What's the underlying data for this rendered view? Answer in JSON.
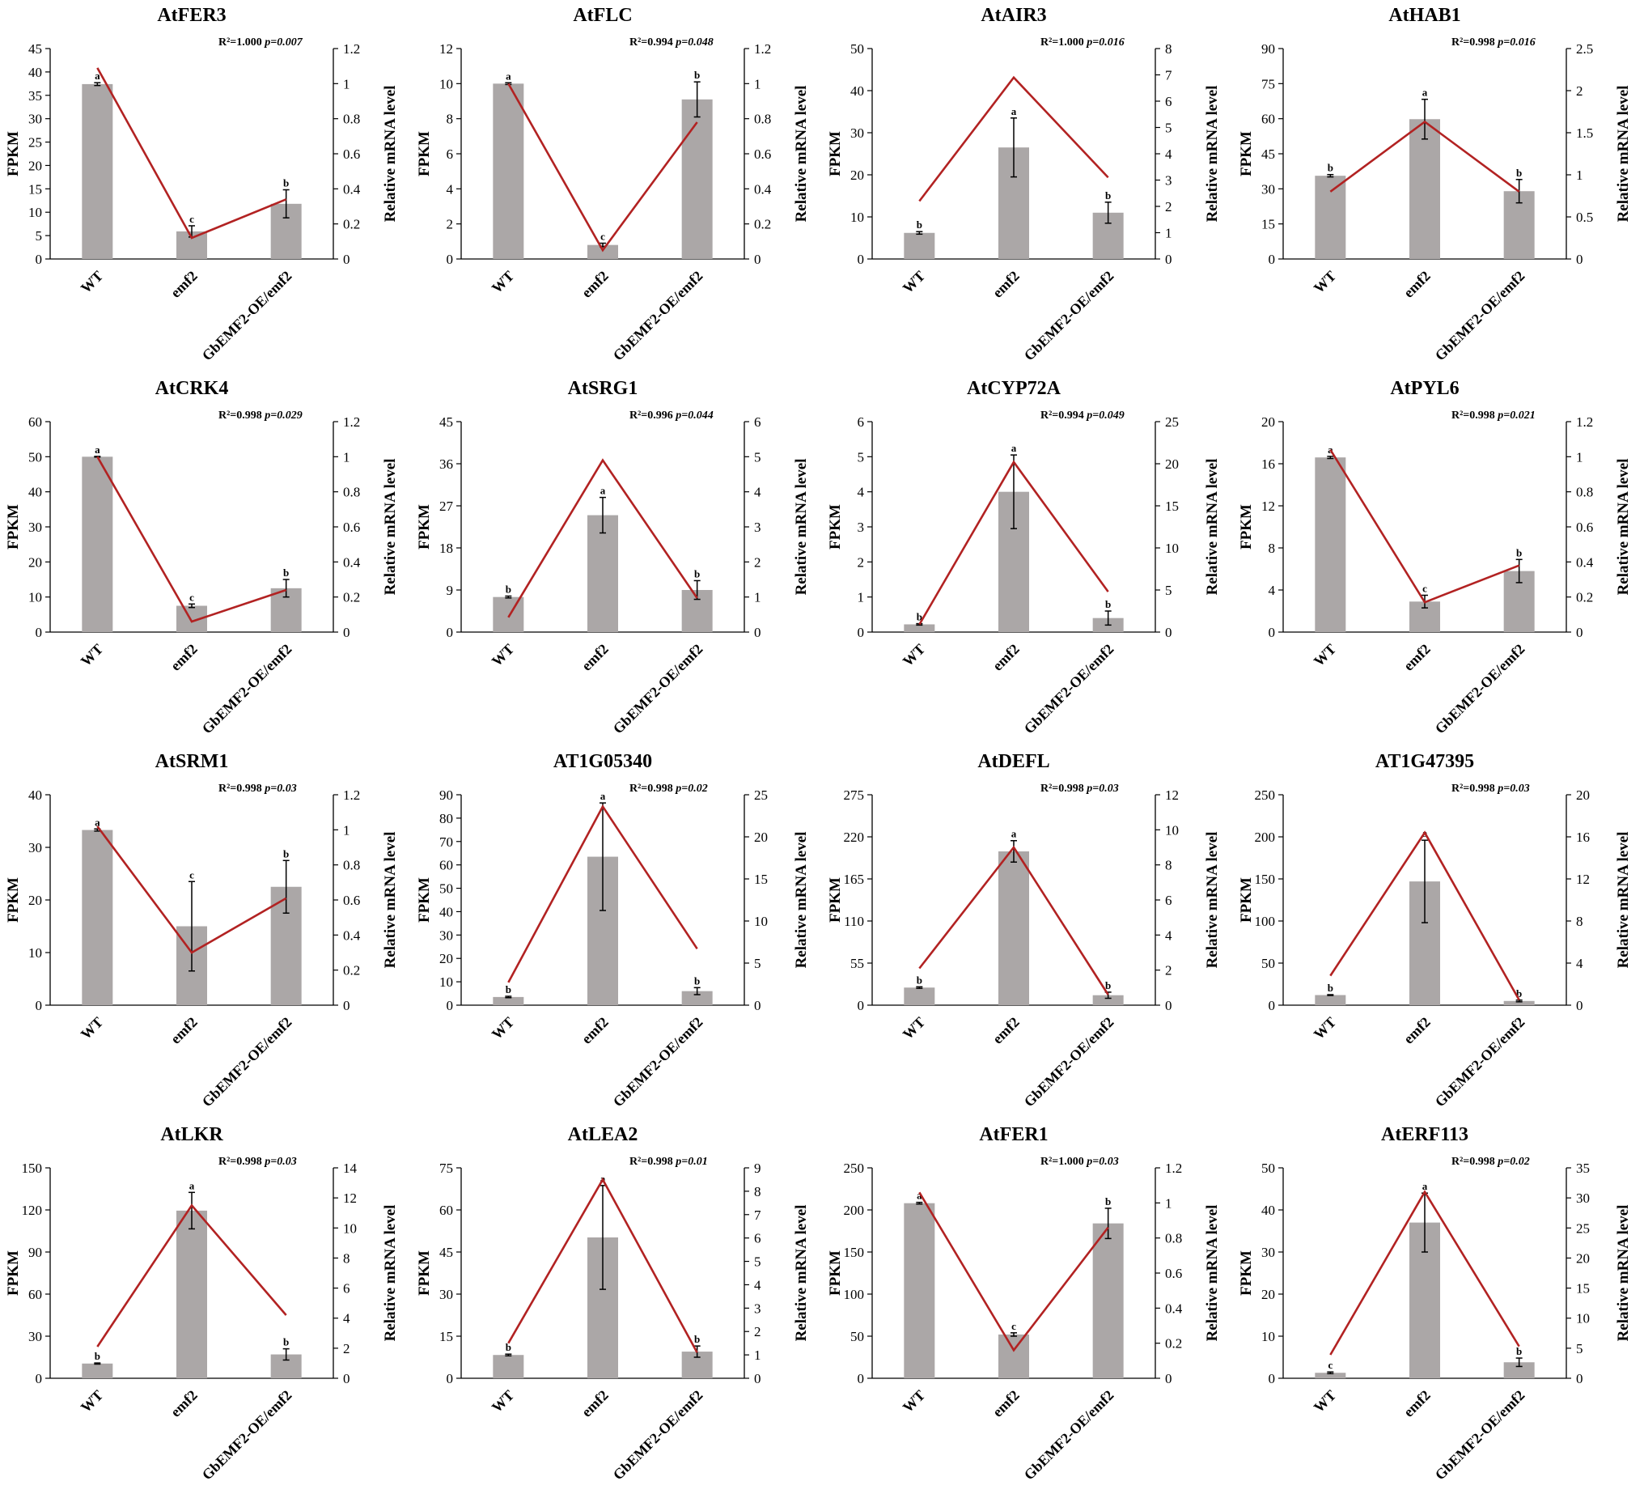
{
  "chart_data": [
    {
      "type": "bar+line",
      "title": "AtFER3",
      "categories": [
        "WT",
        "emf2",
        "GbEMF2-OE/emf2"
      ],
      "ylabel": "FPKM",
      "y2label": "Relative mRNA level",
      "ylim": [
        0,
        45
      ],
      "yticks": [
        0,
        5,
        10,
        15,
        20,
        25,
        30,
        35,
        40,
        45
      ],
      "y2lim": [
        0,
        1.2
      ],
      "y2ticks": [
        "0",
        "0.2",
        "0.4",
        "0.6",
        "0.8",
        "1",
        "1.2"
      ],
      "bars": [
        37.4,
        5.9,
        11.8
      ],
      "errors": [
        0.3,
        1.2,
        3.0
      ],
      "letters": [
        "a",
        "c",
        "b"
      ],
      "line": [
        1.09,
        0.12,
        0.34
      ],
      "stat_r2": "R²=1.000",
      "stat_p": "p=0.007"
    },
    {
      "type": "bar+line",
      "title": "AtFLC",
      "categories": [
        "WT",
        "emf2",
        "GbEMF2-OE/emf2"
      ],
      "ylabel": "FPKM",
      "y2label": "Relative mRNA level",
      "ylim": [
        0,
        12
      ],
      "yticks": [
        0,
        2,
        4,
        6,
        8,
        10,
        12
      ],
      "y2lim": [
        0,
        1.2
      ],
      "y2ticks": [
        "0",
        "0.2",
        "0.4",
        "0.6",
        "0.8",
        "1",
        "1.2"
      ],
      "bars": [
        10.0,
        0.8,
        9.1
      ],
      "errors": [
        0.05,
        0.1,
        1.0
      ],
      "letters": [
        "a",
        "c",
        "b"
      ],
      "line": [
        1.0,
        0.05,
        0.78
      ],
      "stat_r2": "R²=0.994",
      "stat_p": "p=0.048"
    },
    {
      "type": "bar+line",
      "title": "AtAIR3",
      "categories": [
        "WT",
        "emf2",
        "GbEMF2-OE/emf2"
      ],
      "ylabel": "FPKM",
      "y2label": "Relative mRNA level",
      "ylim": [
        0,
        50
      ],
      "yticks": [
        0,
        10,
        20,
        30,
        40,
        50
      ],
      "y2lim": [
        0,
        8
      ],
      "y2ticks": [
        "0",
        "1",
        "2",
        "3",
        "4",
        "5",
        "6",
        "7",
        "8"
      ],
      "bars": [
        6.2,
        26.5,
        11.0
      ],
      "errors": [
        0.3,
        7.0,
        2.5
      ],
      "letters": [
        "b",
        "a",
        "b"
      ],
      "line": [
        2.2,
        6.9,
        3.1
      ],
      "stat_r2": "R²=1.000",
      "stat_p": "p=0.016"
    },
    {
      "type": "bar+line",
      "title": "AtHAB1",
      "categories": [
        "WT",
        "emf2",
        "GbEMF2-OE/emf2"
      ],
      "ylabel": "FPKM",
      "y2label": "Relative mRNA level",
      "ylim": [
        0,
        90
      ],
      "yticks": [
        0,
        15,
        30,
        45,
        60,
        75,
        90
      ],
      "y2lim": [
        0,
        2.5
      ],
      "y2ticks": [
        "0",
        "0.5",
        "1",
        "1.5",
        "2",
        "2.5"
      ],
      "bars": [
        35.6,
        59.8,
        29.0
      ],
      "errors": [
        0.5,
        8.5,
        5.0
      ],
      "letters": [
        "b",
        "a",
        "b"
      ],
      "line": [
        0.8,
        1.63,
        0.8
      ],
      "stat_r2": "R²=0.998",
      "stat_p": "p=0.016"
    },
    {
      "type": "bar+line",
      "title": "AtCRK4",
      "categories": [
        "WT",
        "emf2",
        "GbEMF2-OE/emf2"
      ],
      "ylabel": "FPKM",
      "y2label": "Relative mRNA level",
      "ylim": [
        0,
        60
      ],
      "yticks": [
        0,
        10,
        20,
        30,
        40,
        50,
        60
      ],
      "y2lim": [
        0,
        1.2
      ],
      "y2ticks": [
        "0",
        "0.2",
        "0.4",
        "0.6",
        "0.8",
        "1",
        "1.2"
      ],
      "bars": [
        50.0,
        7.5,
        12.5
      ],
      "errors": [
        0.1,
        0.5,
        2.5
      ],
      "letters": [
        "a",
        "c",
        "b"
      ],
      "line": [
        1.0,
        0.06,
        0.24
      ],
      "stat_r2": "R²=0.998",
      "stat_p": "p=0.029"
    },
    {
      "type": "bar+line",
      "title": "AtSRG1",
      "categories": [
        "WT",
        "emf2",
        "GbEMF2-OE/emf2"
      ],
      "ylabel": "FPKM",
      "y2label": "Relative mRNA level",
      "ylim": [
        0,
        45
      ],
      "yticks": [
        0,
        9,
        18,
        27,
        36,
        45
      ],
      "y2lim": [
        0,
        6
      ],
      "y2ticks": [
        "0",
        "1",
        "2",
        "3",
        "4",
        "5",
        "6"
      ],
      "bars": [
        7.5,
        25.0,
        9.0
      ],
      "errors": [
        0.2,
        3.8,
        2.0
      ],
      "letters": [
        "b",
        "a",
        "b"
      ],
      "line": [
        0.42,
        4.9,
        0.97
      ],
      "stat_r2": "R²=0.996",
      "stat_p": "p=0.044"
    },
    {
      "type": "bar+line",
      "title": "AtCYP72A",
      "categories": [
        "WT",
        "emf2",
        "GbEMF2-OE/emf2"
      ],
      "ylabel": "FPKM",
      "y2label": "Relative mRNA level",
      "ylim": [
        0,
        6
      ],
      "yticks": [
        0,
        1,
        2,
        3,
        4,
        5,
        6
      ],
      "y2lim": [
        0,
        25
      ],
      "y2ticks": [
        "0",
        "5",
        "10",
        "15",
        "20",
        "25"
      ],
      "bars": [
        0.22,
        4.0,
        0.4
      ],
      "errors": [
        0.02,
        1.05,
        0.2
      ],
      "letters": [
        "b",
        "a",
        "b"
      ],
      "line": [
        0.9,
        20.2,
        4.8
      ],
      "stat_r2": "R²=0.994",
      "stat_p": "p=0.049"
    },
    {
      "type": "bar+line",
      "title": "AtPYL6",
      "categories": [
        "WT",
        "emf2",
        "GbEMF2-OE/emf2"
      ],
      "ylabel": "FPKM",
      "y2label": "Relative mRNA level",
      "ylim": [
        0,
        20
      ],
      "yticks": [
        0,
        4,
        8,
        12,
        16,
        20
      ],
      "y2lim": [
        0,
        1.2
      ],
      "y2ticks": [
        "0",
        "0.2",
        "0.4",
        "0.6",
        "0.8",
        "1",
        "1.2"
      ],
      "bars": [
        16.6,
        2.9,
        5.8
      ],
      "errors": [
        0.1,
        0.6,
        1.1
      ],
      "letters": [
        "a",
        "c",
        "b"
      ],
      "line": [
        1.04,
        0.17,
        0.38
      ],
      "stat_r2": "R²=0.998",
      "stat_p": "p=0.021"
    },
    {
      "type": "bar+line",
      "title": "AtSRM1",
      "categories": [
        "WT",
        "emf2",
        "GbEMF2-OE/emf2"
      ],
      "ylabel": "FPKM",
      "y2label": "Relative mRNA level",
      "ylim": [
        0,
        40
      ],
      "yticks": [
        0,
        10,
        20,
        30,
        40
      ],
      "y2lim": [
        0,
        1.2
      ],
      "y2ticks": [
        "0",
        "0.2",
        "0.4",
        "0.6",
        "0.8",
        "1",
        "1.2"
      ],
      "bars": [
        33.3,
        15.0,
        22.5
      ],
      "errors": [
        0.2,
        8.5,
        5.0
      ],
      "letters": [
        "a",
        "c",
        "b"
      ],
      "line": [
        1.02,
        0.3,
        0.61
      ],
      "stat_r2": "R²=0.998",
      "stat_p": "p=0.03"
    },
    {
      "type": "bar+line",
      "title": "AT1G05340",
      "categories": [
        "WT",
        "emf2",
        "GbEMF2-OE/emf2"
      ],
      "ylabel": "FPKM",
      "y2label": "Relative mRNA level",
      "ylim": [
        0,
        90
      ],
      "yticks": [
        0,
        10,
        20,
        30,
        40,
        50,
        60,
        70,
        80,
        90
      ],
      "y2lim": [
        0,
        25
      ],
      "y2ticks": [
        "0",
        "5",
        "10",
        "15",
        "20",
        "25"
      ],
      "bars": [
        3.5,
        63.5,
        6.0
      ],
      "errors": [
        0.3,
        23.0,
        1.5
      ],
      "letters": [
        "b",
        "a",
        "b"
      ],
      "line": [
        2.7,
        23.6,
        6.7
      ],
      "stat_r2": "R²=0.998",
      "stat_p": "p=0.02"
    },
    {
      "type": "bar+line",
      "title": "AtDEFL",
      "categories": [
        "WT",
        "emf2",
        "GbEMF2-OE/emf2"
      ],
      "ylabel": "FPKM",
      "y2label": "Relative mRNA level",
      "ylim": [
        0,
        275
      ],
      "yticks": [
        0,
        55,
        110,
        165,
        220,
        275
      ],
      "y2lim": [
        0,
        12
      ],
      "y2ticks": [
        "0",
        "2",
        "4",
        "6",
        "8",
        "10",
        "12"
      ],
      "bars": [
        23.0,
        201.0,
        13.0
      ],
      "errors": [
        1.0,
        14.0,
        4.0
      ],
      "letters": [
        "b",
        "a",
        "b"
      ],
      "line": [
        2.1,
        9.0,
        0.6
      ],
      "stat_r2": "R²=0.998",
      "stat_p": "p=0.03"
    },
    {
      "type": "bar+line",
      "title": "AT1G47395",
      "categories": [
        "WT",
        "emf2",
        "GbEMF2-OE/emf2"
      ],
      "ylabel": "FPKM",
      "y2label": "Relative mRNA level",
      "ylim": [
        0,
        250
      ],
      "yticks": [
        0,
        50,
        100,
        150,
        200,
        250
      ],
      "y2lim": [
        0,
        20
      ],
      "y2ticks": [
        "0",
        "4",
        "8",
        "12",
        "16",
        "20"
      ],
      "bars": [
        12.0,
        147.0,
        5.0
      ],
      "errors": [
        0.5,
        49.0,
        1.0
      ],
      "letters": [
        "b",
        "a",
        "b"
      ],
      "line": [
        2.8,
        16.4,
        0.5
      ],
      "stat_r2": "R²=0.998",
      "stat_p": "p=0.03"
    },
    {
      "type": "bar+line",
      "title": "AtLKR",
      "categories": [
        "WT",
        "emf2",
        "GbEMF2-OE/emf2"
      ],
      "ylabel": "FPKM",
      "y2label": "Relative mRNA level",
      "ylim": [
        0,
        150
      ],
      "yticks": [
        0,
        30,
        60,
        90,
        120,
        150
      ],
      "y2lim": [
        0,
        14
      ],
      "y2ticks": [
        "0",
        "2",
        "4",
        "6",
        "8",
        "10",
        "12",
        "14"
      ],
      "bars": [
        10.5,
        119.5,
        17.0
      ],
      "errors": [
        0.4,
        13.0,
        4.0
      ],
      "letters": [
        "b",
        "a",
        "b"
      ],
      "line": [
        2.1,
        11.5,
        4.2
      ],
      "stat_r2": "R²=0.998",
      "stat_p": "p=0.03"
    },
    {
      "type": "bar+line",
      "title": "AtLEA2",
      "categories": [
        "WT",
        "emf2",
        "GbEMF2-OE/emf2"
      ],
      "ylabel": "FPKM",
      "y2label": "Relative mRNA level",
      "ylim": [
        0,
        75
      ],
      "yticks": [
        0,
        15,
        30,
        45,
        60,
        75
      ],
      "y2lim": [
        0,
        9
      ],
      "y2ticks": [
        "0",
        "1",
        "2",
        "3",
        "4",
        "5",
        "6",
        "7",
        "8",
        "9"
      ],
      "bars": [
        8.3,
        50.2,
        9.5
      ],
      "errors": [
        0.3,
        18.5,
        2.0
      ],
      "letters": [
        "b",
        "a",
        "b"
      ],
      "line": [
        1.5,
        8.5,
        1.1
      ],
      "stat_r2": "R²=0.998",
      "stat_p": "p=0.01"
    },
    {
      "type": "bar+line",
      "title": "AtFER1",
      "categories": [
        "WT",
        "emf2",
        "GbEMF2-OE/emf2"
      ],
      "ylabel": "FPKM",
      "y2label": "Relative mRNA level",
      "ylim": [
        0,
        250
      ],
      "yticks": [
        0,
        50,
        100,
        150,
        200,
        250
      ],
      "y2lim": [
        0,
        1.2
      ],
      "y2ticks": [
        "0",
        "0.2",
        "0.4",
        "0.6",
        "0.8",
        "1",
        "1.2"
      ],
      "bars": [
        208.0,
        52.0,
        184.0
      ],
      "errors": [
        1.0,
        2.0,
        18.0
      ],
      "letters": [
        "a",
        "c",
        "b"
      ],
      "line": [
        1.06,
        0.16,
        0.86
      ],
      "stat_r2": "R²=1.000",
      "stat_p": "p=0.03"
    },
    {
      "type": "bar+line",
      "title": "AtERF113",
      "categories": [
        "WT",
        "emf2",
        "GbEMF2-OE/emf2"
      ],
      "ylabel": "FPKM",
      "y2label": "Relative mRNA level",
      "ylim": [
        0,
        50
      ],
      "yticks": [
        0,
        10,
        20,
        30,
        40,
        50
      ],
      "y2lim": [
        0,
        35
      ],
      "y2ticks": [
        "0",
        "5",
        "10",
        "15",
        "20",
        "25",
        "30",
        "35"
      ],
      "bars": [
        1.3,
        37.0,
        3.8
      ],
      "errors": [
        0.2,
        7.0,
        1.0
      ],
      "letters": [
        "c",
        "a",
        "b"
      ],
      "line": [
        3.9,
        31.0,
        5.3
      ],
      "stat_r2": "R²=0.998",
      "stat_p": "p=0.02"
    }
  ],
  "style": {
    "bar_color": "#aba7a7",
    "line_color": "#b22222",
    "axis_color": "#000000"
  }
}
